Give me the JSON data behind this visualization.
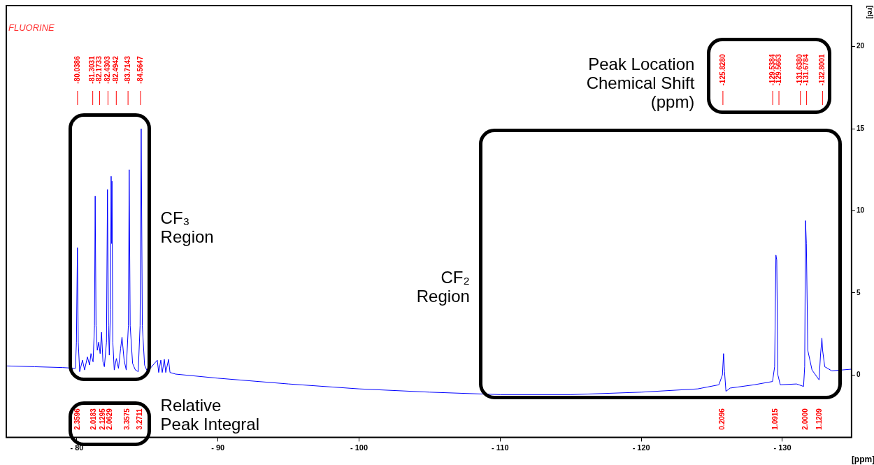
{
  "chart_data": {
    "type": "line",
    "xlabel": "[ppm]",
    "ylabel": "[rel]",
    "xlim": [
      -75,
      -134.9
    ],
    "ylim": [
      -3.8,
      22.5
    ],
    "xticks": [
      {
        "value": -80,
        "label": "- 80"
      },
      {
        "value": -90,
        "label": "- 90"
      },
      {
        "value": -100,
        "label": "- 100"
      },
      {
        "value": -110,
        "label": "- 110"
      },
      {
        "value": -120,
        "label": "- 120"
      },
      {
        "value": -130,
        "label": "- 130"
      }
    ],
    "yticks": [
      0,
      5,
      10,
      15,
      20
    ],
    "grid": false,
    "legend": false,
    "marker": "none",
    "x": [
      -75,
      -77,
      -79,
      -79.9,
      -79.97,
      -80.04,
      -80.1,
      -80.2,
      -80.4,
      -80.55,
      -80.75,
      -80.9,
      -81.0,
      -81.15,
      -81.25,
      -81.3,
      -81.36,
      -81.45,
      -81.55,
      -81.65,
      -81.75,
      -81.85,
      -81.95,
      -82.1,
      -82.17,
      -82.24,
      -82.3,
      -82.38,
      -82.43,
      -82.47,
      -82.49,
      -82.55,
      -82.65,
      -82.8,
      -82.95,
      -83.1,
      -83.2,
      -83.35,
      -83.5,
      -83.65,
      -83.71,
      -83.78,
      -83.95,
      -84.15,
      -84.35,
      -84.48,
      -84.56,
      -84.64,
      -84.8,
      -85.0,
      -85.7,
      -85.8,
      -85.95,
      -86.05,
      -86.2,
      -86.3,
      -86.5,
      -86.6,
      -87,
      -90,
      -95,
      -100,
      -105,
      -110,
      -115,
      -120,
      -124,
      -125.5,
      -125.75,
      -125.83,
      -125.9,
      -126.0,
      -126.3,
      -128,
      -129.3,
      -129.45,
      -129.54,
      -129.6,
      -129.68,
      -129.85,
      -131,
      -131.5,
      -131.58,
      -131.64,
      -131.7,
      -131.8,
      -132.1,
      -132.6,
      -132.7,
      -132.8,
      -132.85,
      -133.0,
      -133.5,
      -134.9
    ],
    "series": [
      {
        "color": "#0000ff",
        "values": [
          0.55,
          0.5,
          0.45,
          0.4,
          2,
          7.75,
          2,
          0.2,
          0.9,
          0.3,
          1.1,
          0.6,
          1.3,
          0.8,
          3,
          10.9,
          3,
          1.5,
          2.0,
          1.3,
          2.6,
          0.8,
          0.5,
          2,
          11.3,
          3,
          1.2,
          4,
          12.1,
          8,
          11.8,
          2,
          0.3,
          1.0,
          0.4,
          1.6,
          2.3,
          0.9,
          0.3,
          3,
          12.5,
          3,
          0.7,
          0.3,
          0.2,
          3,
          15.0,
          3,
          0.6,
          0.2,
          0.9,
          0.15,
          0.9,
          0.15,
          0.95,
          0.15,
          0.95,
          0.15,
          0.05,
          -0.2,
          -0.55,
          -0.85,
          -1.05,
          -1.2,
          -1.2,
          -1.05,
          -0.85,
          -0.6,
          0,
          1.3,
          0.2,
          -1.0,
          -0.8,
          -0.6,
          -0.4,
          0.5,
          7.3,
          7.0,
          0,
          -0.6,
          -0.55,
          -0.7,
          0.5,
          9.4,
          8.0,
          1.5,
          0.3,
          -0.3,
          1.2,
          2.25,
          1.5,
          0.5,
          0.25,
          0.35
        ]
      }
    ],
    "annotations": [
      "FLUORINE",
      "CF₃\nRegion",
      "CF₂\nRegion",
      "Relative\nPeak Integral",
      "Peak Location\nChemical Shift\n(ppm)",
      "-80.0386",
      "-81.3031",
      "-82.1733",
      "-82.4303",
      "-82.4942",
      "-83.7143",
      "-84.5647",
      "-125.8280",
      "-129.5384",
      "-129.5663",
      "-131.6380",
      "-131.6784",
      "-132.8001",
      "2.3596",
      "2.0183",
      "2.1295",
      "2.0629",
      "3.3575",
      "3.2711",
      "0.2096",
      "1.0915",
      "2.0000",
      "1.1209"
    ]
  }
}
